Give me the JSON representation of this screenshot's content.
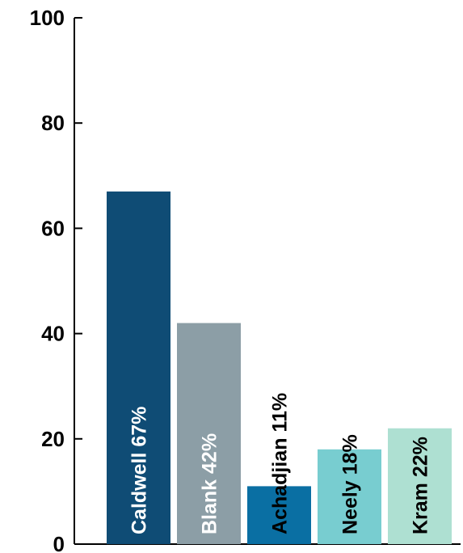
{
  "chart_data": {
    "type": "bar",
    "title": "",
    "xlabel": "",
    "ylabel": "",
    "ylim": [
      0,
      100
    ],
    "yticks": [
      "0",
      "20",
      "40",
      "60",
      "80",
      "100"
    ],
    "grid": false,
    "bars": [
      {
        "label": "Caldwell 67%",
        "category": "Caldwell",
        "value": 67,
        "color": "#0f4c75",
        "text_color": "#ffffff"
      },
      {
        "label": "Blank 42%",
        "category": "Blank",
        "value": 42,
        "color": "#8c9ea6",
        "text_color": "#ffffff"
      },
      {
        "label": "Achadjian 11%",
        "category": "Achadjian",
        "value": 11,
        "color": "#0a6fa3",
        "text_color": "#000000"
      },
      {
        "label": "Neely 18%",
        "category": "Neely",
        "value": 18,
        "color": "#78cdd0",
        "text_color": "#000000"
      },
      {
        "label": "Kram 22%",
        "category": "Kram",
        "value": 22,
        "color": "#aee0d2",
        "text_color": "#000000"
      }
    ]
  }
}
